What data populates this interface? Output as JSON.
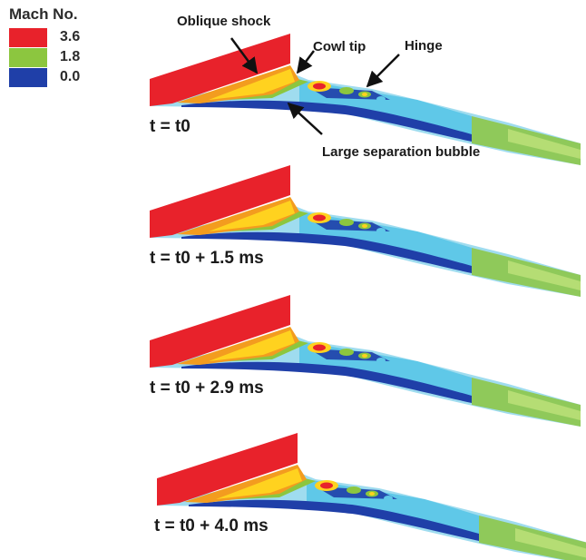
{
  "legend": {
    "title": "Mach No.",
    "entries": [
      {
        "value": "3.6",
        "color": "#e8222b"
      },
      {
        "value": "1.8",
        "color": "#8cc63f"
      },
      {
        "value": "0.0",
        "color": "#1f3fa8"
      }
    ]
  },
  "annotations": {
    "oblique_shock": "Oblique shock",
    "cowl_tip": "Cowl tip",
    "hinge": "Hinge",
    "separation": "Large separation bubble"
  },
  "frames": [
    {
      "time_label": "t = t0"
    },
    {
      "time_label": "t = t0 + 1.5 ms"
    },
    {
      "time_label": "t = t0 + 2.9 ms"
    },
    {
      "time_label": "t = t0 + 4.0 ms"
    }
  ],
  "colors": {
    "red": "#e8222b",
    "orange": "#f39c1f",
    "yellow": "#ffd21f",
    "green": "#8cc63f",
    "cyan": "#5fc8e8",
    "light_cyan": "#9fdcef",
    "blue": "#1f3fa8"
  }
}
